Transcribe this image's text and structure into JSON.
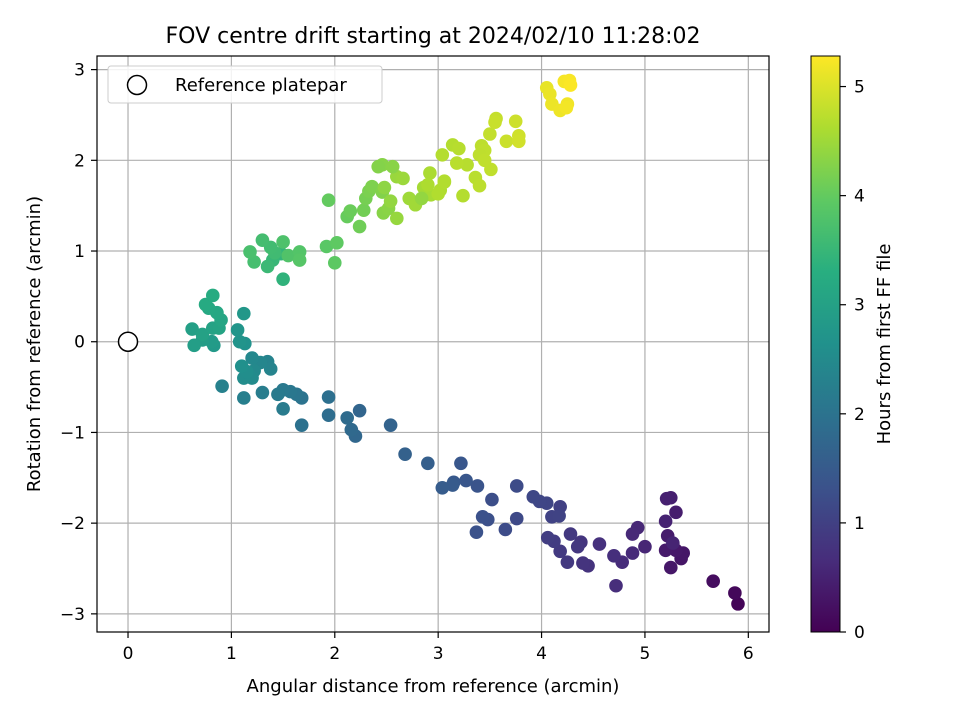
{
  "chart_data": {
    "type": "scatter",
    "title": "FOV centre drift starting at 2024/02/10 11:28:02",
    "xlabel": "Angular distance from reference (arcmin)",
    "ylabel": "Rotation from reference (arcmin)",
    "xlim": [
      -0.3,
      6.2
    ],
    "ylim": [
      -3.2,
      3.15
    ],
    "xticks": [
      0,
      1,
      2,
      3,
      4,
      5,
      6
    ],
    "yticks": [
      -3,
      -2,
      -1,
      0,
      1,
      2,
      3
    ],
    "grid": true,
    "legend": {
      "placement": "top-left",
      "entries": [
        "Reference platepar"
      ]
    },
    "reference_point": {
      "x": 0,
      "y": 0
    },
    "colorbar": {
      "label": "Hours from first FF file",
      "colormap": "viridis",
      "range": [
        0,
        5.28
      ],
      "ticks": [
        0,
        1,
        2,
        3,
        4,
        5
      ]
    },
    "points": [
      [
        5.9,
        -2.89,
        0.05
      ],
      [
        5.87,
        -2.77,
        0.1
      ],
      [
        5.66,
        -2.64,
        0.18
      ],
      [
        5.35,
        -2.39,
        0.3
      ],
      [
        5.37,
        -2.33,
        0.32
      ],
      [
        5.3,
        -2.3,
        0.35
      ],
      [
        5.25,
        -2.49,
        0.33
      ],
      [
        5.2,
        -2.3,
        0.37
      ],
      [
        5.22,
        -2.14,
        0.4
      ],
      [
        5.3,
        -1.88,
        0.42
      ],
      [
        5.25,
        -1.72,
        0.45
      ],
      [
        5.21,
        -1.73,
        0.47
      ],
      [
        5.2,
        -1.98,
        0.5
      ],
      [
        5.27,
        -2.22,
        0.52
      ],
      [
        5.0,
        -2.26,
        0.55
      ],
      [
        4.93,
        -2.05,
        0.58
      ],
      [
        4.88,
        -2.12,
        0.6
      ],
      [
        4.88,
        -2.33,
        0.62
      ],
      [
        4.78,
        -2.43,
        0.65
      ],
      [
        4.72,
        -2.69,
        0.68
      ],
      [
        4.7,
        -2.36,
        0.7
      ],
      [
        4.56,
        -2.23,
        0.73
      ],
      [
        4.45,
        -2.47,
        0.76
      ],
      [
        4.4,
        -2.44,
        0.78
      ],
      [
        4.38,
        -2.21,
        0.8
      ],
      [
        4.35,
        -2.26,
        0.83
      ],
      [
        4.28,
        -2.12,
        0.86
      ],
      [
        4.25,
        -2.43,
        0.88
      ],
      [
        4.18,
        -2.31,
        0.9
      ],
      [
        4.12,
        -2.2,
        0.93
      ],
      [
        4.06,
        -2.16,
        0.96
      ],
      [
        4.18,
        -1.82,
        1.0
      ],
      [
        4.1,
        -1.93,
        1.03
      ],
      [
        4.17,
        -1.92,
        1.05
      ],
      [
        4.05,
        -1.78,
        1.08
      ],
      [
        3.98,
        -1.76,
        1.1
      ],
      [
        3.92,
        -1.71,
        1.13
      ],
      [
        3.76,
        -1.95,
        1.16
      ],
      [
        3.76,
        -1.59,
        1.2
      ],
      [
        3.65,
        -2.07,
        1.22
      ],
      [
        3.52,
        -1.74,
        1.25
      ],
      [
        3.48,
        -1.96,
        1.28
      ],
      [
        3.43,
        -1.93,
        1.3
      ],
      [
        3.37,
        -2.1,
        1.33
      ],
      [
        3.38,
        -1.59,
        1.36
      ],
      [
        3.27,
        -1.53,
        1.4
      ],
      [
        3.22,
        -1.34,
        1.43
      ],
      [
        3.15,
        -1.55,
        1.46
      ],
      [
        3.14,
        -1.58,
        1.5
      ],
      [
        3.04,
        -1.61,
        1.53
      ],
      [
        2.9,
        -1.34,
        1.58
      ],
      [
        2.68,
        -1.24,
        1.63
      ],
      [
        2.54,
        -0.92,
        1.68
      ],
      [
        2.24,
        -0.76,
        1.72
      ],
      [
        2.2,
        -1.04,
        1.76
      ],
      [
        2.16,
        -0.97,
        1.8
      ],
      [
        2.12,
        -0.84,
        1.84
      ],
      [
        1.94,
        -0.81,
        1.88
      ],
      [
        1.94,
        -0.61,
        1.92
      ],
      [
        1.68,
        -0.92,
        1.96
      ],
      [
        1.68,
        -0.62,
        2.0
      ],
      [
        1.63,
        -0.58,
        2.04
      ],
      [
        1.57,
        -0.55,
        2.08
      ],
      [
        1.5,
        -0.53,
        2.12
      ],
      [
        1.45,
        -0.58,
        2.15
      ],
      [
        1.5,
        -0.74,
        2.18
      ],
      [
        1.3,
        -0.56,
        2.22
      ],
      [
        1.12,
        -0.62,
        2.26
      ],
      [
        0.91,
        -0.49,
        2.3
      ],
      [
        1.35,
        -0.22,
        2.34
      ],
      [
        1.38,
        -0.3,
        2.37
      ],
      [
        1.28,
        -0.23,
        2.4
      ],
      [
        1.2,
        -0.18,
        2.44
      ],
      [
        1.22,
        -0.32,
        2.48
      ],
      [
        1.2,
        -0.4,
        2.52
      ],
      [
        1.12,
        -0.4,
        2.55
      ],
      [
        1.15,
        -0.33,
        2.58
      ],
      [
        1.1,
        -0.27,
        2.62
      ],
      [
        1.13,
        -0.02,
        2.66
      ],
      [
        1.08,
        0.0,
        2.7
      ],
      [
        1.06,
        0.13,
        2.74
      ],
      [
        1.12,
        0.31,
        2.78
      ],
      [
        0.83,
        -0.04,
        2.82
      ],
      [
        0.81,
        0.0,
        2.86
      ],
      [
        0.72,
        0.02,
        2.9
      ],
      [
        0.64,
        -0.04,
        2.93
      ],
      [
        0.62,
        0.14,
        2.96
      ],
      [
        0.72,
        0.08,
        3.0
      ],
      [
        0.82,
        0.15,
        3.03
      ],
      [
        0.88,
        0.15,
        3.06
      ],
      [
        0.9,
        0.24,
        3.1
      ],
      [
        0.86,
        0.32,
        3.13
      ],
      [
        0.78,
        0.37,
        3.16
      ],
      [
        0.75,
        0.41,
        3.2
      ],
      [
        0.82,
        0.51,
        3.24
      ],
      [
        1.5,
        0.69,
        3.4
      ],
      [
        1.48,
        0.97,
        3.45
      ],
      [
        1.4,
        0.9,
        3.5
      ],
      [
        1.35,
        0.83,
        3.55
      ],
      [
        1.42,
        0.98,
        3.6
      ],
      [
        1.38,
        1.04,
        3.62
      ],
      [
        1.3,
        1.12,
        3.65
      ],
      [
        1.22,
        0.88,
        3.68
      ],
      [
        1.18,
        0.99,
        3.72
      ],
      [
        1.5,
        1.1,
        3.76
      ],
      [
        1.55,
        0.95,
        3.8
      ],
      [
        1.66,
        0.99,
        3.83
      ],
      [
        1.66,
        0.9,
        3.86
      ],
      [
        1.92,
        1.05,
        3.9
      ],
      [
        2.0,
        0.87,
        3.93
      ],
      [
        2.02,
        1.09,
        3.96
      ],
      [
        1.94,
        1.56,
        4.0
      ],
      [
        2.12,
        1.38,
        4.03
      ],
      [
        2.15,
        1.44,
        4.06
      ],
      [
        2.24,
        1.27,
        4.1
      ],
      [
        2.28,
        1.45,
        4.13
      ],
      [
        2.3,
        1.58,
        4.16
      ],
      [
        2.33,
        1.66,
        4.2
      ],
      [
        2.36,
        1.71,
        4.23
      ],
      [
        2.46,
        1.65,
        4.26
      ],
      [
        2.47,
        1.42,
        4.3
      ],
      [
        2.52,
        1.47,
        4.33
      ],
      [
        2.48,
        1.7,
        4.36
      ],
      [
        2.54,
        1.55,
        4.4
      ],
      [
        2.6,
        1.36,
        4.43
      ],
      [
        2.6,
        1.82,
        4.45
      ],
      [
        2.66,
        1.8,
        4.48
      ],
      [
        2.72,
        1.58,
        4.5
      ],
      [
        2.78,
        1.51,
        4.52
      ],
      [
        2.86,
        1.7,
        4.55
      ],
      [
        2.93,
        1.62,
        4.57
      ],
      [
        2.92,
        1.86,
        4.6
      ],
      [
        2.9,
        1.73,
        4.62
      ],
      [
        3.02,
        1.67,
        4.64
      ],
      [
        3.06,
        1.77,
        4.66
      ],
      [
        2.84,
        1.58,
        4.4
      ],
      [
        2.46,
        1.95,
        4.3
      ],
      [
        2.42,
        1.93,
        4.28
      ],
      [
        2.56,
        1.93,
        4.32
      ],
      [
        3.0,
        1.63,
        4.65
      ],
      [
        3.06,
        1.76,
        4.66
      ],
      [
        3.24,
        1.61,
        4.68
      ],
      [
        3.28,
        1.95,
        4.7
      ],
      [
        3.36,
        1.81,
        4.72
      ],
      [
        3.4,
        1.72,
        4.74
      ],
      [
        3.42,
        2.16,
        4.75
      ],
      [
        3.45,
        2.11,
        4.77
      ],
      [
        3.51,
        1.9,
        4.78
      ],
      [
        3.5,
        2.29,
        4.8
      ],
      [
        3.56,
        2.46,
        4.82
      ],
      [
        3.55,
        2.42,
        4.84
      ],
      [
        3.66,
        2.21,
        4.86
      ],
      [
        3.75,
        2.43,
        4.88
      ],
      [
        3.78,
        2.27,
        4.9
      ],
      [
        3.78,
        2.21,
        4.92
      ],
      [
        3.14,
        2.17,
        4.68
      ],
      [
        3.2,
        2.13,
        4.7
      ],
      [
        3.18,
        1.97,
        4.72
      ],
      [
        3.04,
        2.06,
        4.68
      ],
      [
        3.4,
        2.06,
        4.76
      ],
      [
        3.45,
        2.0,
        4.78
      ],
      [
        4.05,
        2.8,
        5.1
      ],
      [
        4.08,
        2.73,
        5.12
      ],
      [
        4.1,
        2.62,
        5.14
      ],
      [
        4.18,
        2.55,
        5.16
      ],
      [
        4.25,
        2.62,
        5.18
      ],
      [
        4.24,
        2.58,
        5.2
      ],
      [
        4.22,
        2.87,
        5.22
      ],
      [
        4.27,
        2.88,
        5.24
      ],
      [
        4.28,
        2.83,
        5.26
      ]
    ]
  }
}
